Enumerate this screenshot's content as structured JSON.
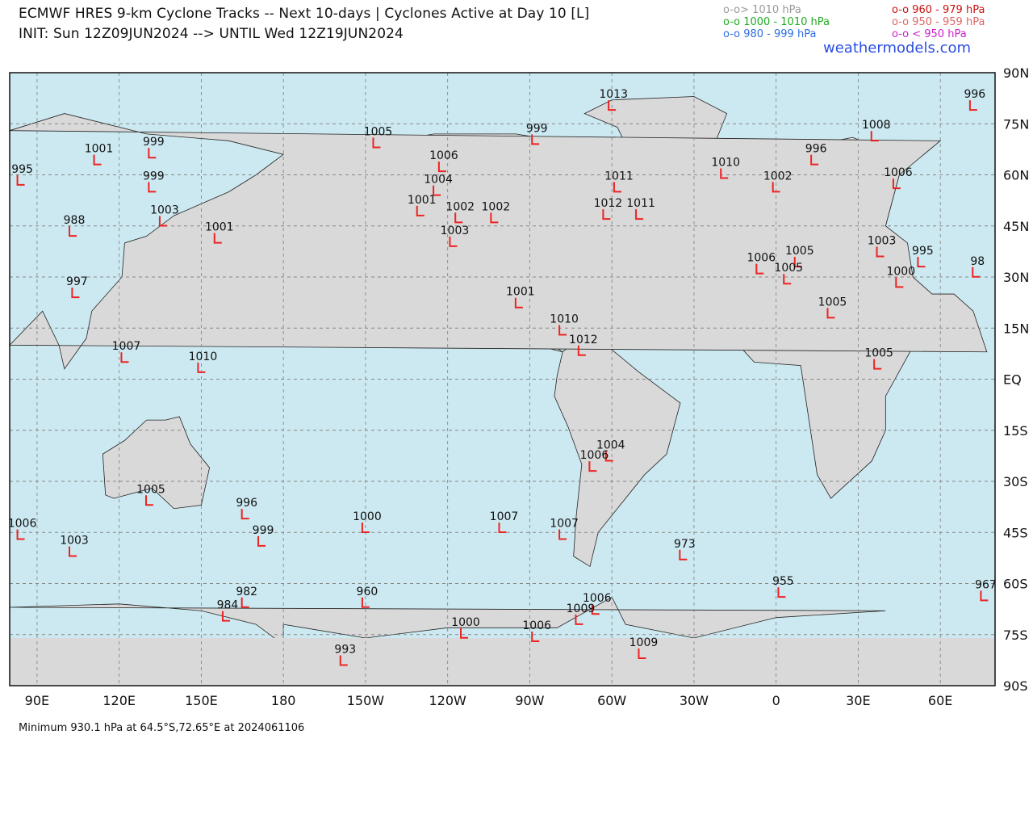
{
  "header": {
    "title": "ECMWF HRES 9-km Cyclone Tracks -- Next 10-days | Cyclones Active at Day 10 [L]",
    "subtitle": "INIT: Sun 12Z09JUN2024 --> UNTIL Wed 12Z19JUN2024",
    "site": "weathermodels.com"
  },
  "legend": [
    {
      "marker": "o-o",
      "label": "> 1010 hPa",
      "color": "#999999"
    },
    {
      "marker": "o-o",
      "label": "1000 - 1010 hPa",
      "color": "#22aa22"
    },
    {
      "marker": "o-o",
      "label": "980 - 999 hPa",
      "color": "#2f6fe0"
    },
    {
      "marker": "o-o",
      "label": "960 - 979 hPa",
      "color": "#cc1111"
    },
    {
      "marker": "o-o",
      "label": "950 - 959 hPa",
      "color": "#e06666"
    },
    {
      "marker": "o-o",
      "label": "< 950 hPa",
      "color": "#cc22cc"
    }
  ],
  "axes": {
    "lat_labels": [
      "90N",
      "75N",
      "60N",
      "45N",
      "30N",
      "15N",
      "EQ",
      "15S",
      "30S",
      "45S",
      "60S",
      "75S",
      "90S"
    ],
    "lon_labels": [
      "90E",
      "120E",
      "150E",
      "180",
      "150W",
      "120W",
      "90W",
      "60W",
      "30W",
      "0",
      "30E",
      "60E"
    ]
  },
  "footer": "Minimum 930.1 hPa at 64.5°S,72.65°E at 2024061106",
  "colors": {
    "ocean": "#cce9f1",
    "land": "#d9d9d9",
    "grid": "#888888",
    "marker": "#ee2222"
  },
  "cyclones": [
    {
      "label": "1013",
      "lon": -60,
      "lat": 80
    },
    {
      "label": "996",
      "lon": 72,
      "lat": 80
    },
    {
      "label": "1008",
      "lon": 36,
      "lat": 71
    },
    {
      "label": "1005",
      "lon": -146,
      "lat": 69
    },
    {
      "label": "999",
      "lon": -88,
      "lat": 70
    },
    {
      "label": "999",
      "lon": 132,
      "lat": 66
    },
    {
      "label": "1001",
      "lon": 112,
      "lat": 64
    },
    {
      "label": "1006",
      "lon": -122,
      "lat": 62
    },
    {
      "label": "1004",
      "lon": -124,
      "lat": 55
    },
    {
      "label": "1011",
      "lon": -58,
      "lat": 56
    },
    {
      "label": "1010",
      "lon": -19,
      "lat": 60
    },
    {
      "label": "1002",
      "lon": 0,
      "lat": 56
    },
    {
      "label": "1006",
      "lon": 44,
      "lat": 57
    },
    {
      "label": "996",
      "lon": 14,
      "lat": 64
    },
    {
      "label": "995",
      "lon": 84,
      "lat": 58
    },
    {
      "label": "999",
      "lon": 132,
      "lat": 56
    },
    {
      "label": "1001",
      "lon": -130,
      "lat": 49
    },
    {
      "label": "1002",
      "lon": -116,
      "lat": 47
    },
    {
      "label": "1002",
      "lon": -103,
      "lat": 47
    },
    {
      "label": "1012",
      "lon": -62,
      "lat": 48
    },
    {
      "label": "1011",
      "lon": -50,
      "lat": 48
    },
    {
      "label": "1003",
      "lon": -118,
      "lat": 40
    },
    {
      "label": "1003",
      "lon": 136,
      "lat": 46
    },
    {
      "label": "988",
      "lon": 103,
      "lat": 43
    },
    {
      "label": "1001",
      "lon": 156,
      "lat": 41
    },
    {
      "label": "1003",
      "lon": 38,
      "lat": 37
    },
    {
      "label": "995",
      "lon": 53,
      "lat": 34
    },
    {
      "label": "98",
      "lon": 73,
      "lat": 31
    },
    {
      "label": "1006",
      "lon": -6,
      "lat": 32
    },
    {
      "label": "1005",
      "lon": 8,
      "lat": 34
    },
    {
      "label": "1005",
      "lon": 4,
      "lat": 29
    },
    {
      "label": "1000",
      "lon": 45,
      "lat": 28
    },
    {
      "label": "997",
      "lon": 104,
      "lat": 25
    },
    {
      "label": "1001",
      "lon": -94,
      "lat": 22
    },
    {
      "label": "1005",
      "lon": 20,
      "lat": 19
    },
    {
      "label": "1010",
      "lon": -78,
      "lat": 14
    },
    {
      "label": "1012",
      "lon": -71,
      "lat": 8
    },
    {
      "label": "1005",
      "lon": 37,
      "lat": 4
    },
    {
      "label": "1007",
      "lon": 122,
      "lat": 6
    },
    {
      "label": "1010",
      "lon": 150,
      "lat": 3
    },
    {
      "label": "1004",
      "lon": -61,
      "lat": -23
    },
    {
      "label": "1006",
      "lon": -67,
      "lat": -26
    },
    {
      "label": "1005",
      "lon": 131,
      "lat": -36
    },
    {
      "label": "996",
      "lon": 166,
      "lat": -40
    },
    {
      "label": "999",
      "lon": 172,
      "lat": -48
    },
    {
      "label": "1000",
      "lon": -150,
      "lat": -44
    },
    {
      "label": "1007",
      "lon": -100,
      "lat": -44
    },
    {
      "label": "1007",
      "lon": -78,
      "lat": -46
    },
    {
      "label": "1006",
      "lon": 84,
      "lat": -46
    },
    {
      "label": "1003",
      "lon": 103,
      "lat": -51
    },
    {
      "label": "973",
      "lon": -34,
      "lat": -52
    },
    {
      "label": "982",
      "lon": 166,
      "lat": -66
    },
    {
      "label": "960",
      "lon": -150,
      "lat": -66
    },
    {
      "label": "1006",
      "lon": -66,
      "lat": -68
    },
    {
      "label": "1009",
      "lon": -72,
      "lat": -71
    },
    {
      "label": "984",
      "lon": 159,
      "lat": -70
    },
    {
      "label": "1000",
      "lon": -114,
      "lat": -75
    },
    {
      "label": "1006",
      "lon": -88,
      "lat": -76
    },
    {
      "label": "1009",
      "lon": -49,
      "lat": -81
    },
    {
      "label": "993",
      "lon": -158,
      "lat": -83
    },
    {
      "label": "955",
      "lon": 2,
      "lat": -63
    },
    {
      "label": "967",
      "lon": 76,
      "lat": -64
    }
  ]
}
